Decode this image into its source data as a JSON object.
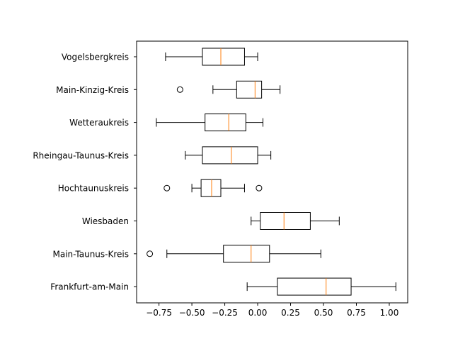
{
  "chart_data": {
    "type": "boxplot",
    "orientation": "horizontal",
    "title": "",
    "xlabel": "",
    "ylabel": "",
    "xlim": [
      -0.92,
      1.14
    ],
    "xticks": [
      -0.75,
      -0.5,
      -0.25,
      0.0,
      0.25,
      0.5,
      0.75,
      1.0
    ],
    "xtick_labels": [
      "−0.75",
      "−0.50",
      "−0.25",
      "0.00",
      "0.25",
      "0.50",
      "0.75",
      "1.00"
    ],
    "grid": false,
    "colors": {
      "box": "#000000",
      "median": "#ff7f0e",
      "flier": "#000000"
    },
    "categories": [
      "Vogelsbergkreis",
      "Main-Kinzig-Kreis",
      "Wetteraukreis",
      "Rheingau-Taunus-Kreis",
      "Hochtaunuskreis",
      "Wiesbaden",
      "Main-Taunus-Kreis",
      "Frankfurt-am-Main"
    ],
    "boxes": [
      {
        "whisker_low": -0.7,
        "q1": -0.42,
        "median": -0.28,
        "q3": -0.1,
        "whisker_high": 0.0,
        "fliers": []
      },
      {
        "whisker_low": -0.34,
        "q1": -0.16,
        "median": -0.02,
        "q3": 0.03,
        "whisker_high": 0.17,
        "fliers": [
          -0.59
        ]
      },
      {
        "whisker_low": -0.77,
        "q1": -0.4,
        "median": -0.22,
        "q3": -0.09,
        "whisker_high": 0.04,
        "fliers": []
      },
      {
        "whisker_low": -0.55,
        "q1": -0.42,
        "median": -0.2,
        "q3": 0.0,
        "whisker_high": 0.1,
        "fliers": []
      },
      {
        "whisker_low": -0.5,
        "q1": -0.43,
        "median": -0.35,
        "q3": -0.28,
        "whisker_high": -0.1,
        "fliers": [
          -0.69,
          0.01
        ]
      },
      {
        "whisker_low": -0.05,
        "q1": 0.02,
        "median": 0.2,
        "q3": 0.4,
        "whisker_high": 0.62,
        "fliers": []
      },
      {
        "whisker_low": -0.69,
        "q1": -0.26,
        "median": -0.05,
        "q3": 0.09,
        "whisker_high": 0.48,
        "fliers": [
          -0.82
        ]
      },
      {
        "whisker_low": -0.08,
        "q1": 0.15,
        "median": 0.52,
        "q3": 0.71,
        "whisker_high": 1.05,
        "fliers": []
      }
    ]
  }
}
